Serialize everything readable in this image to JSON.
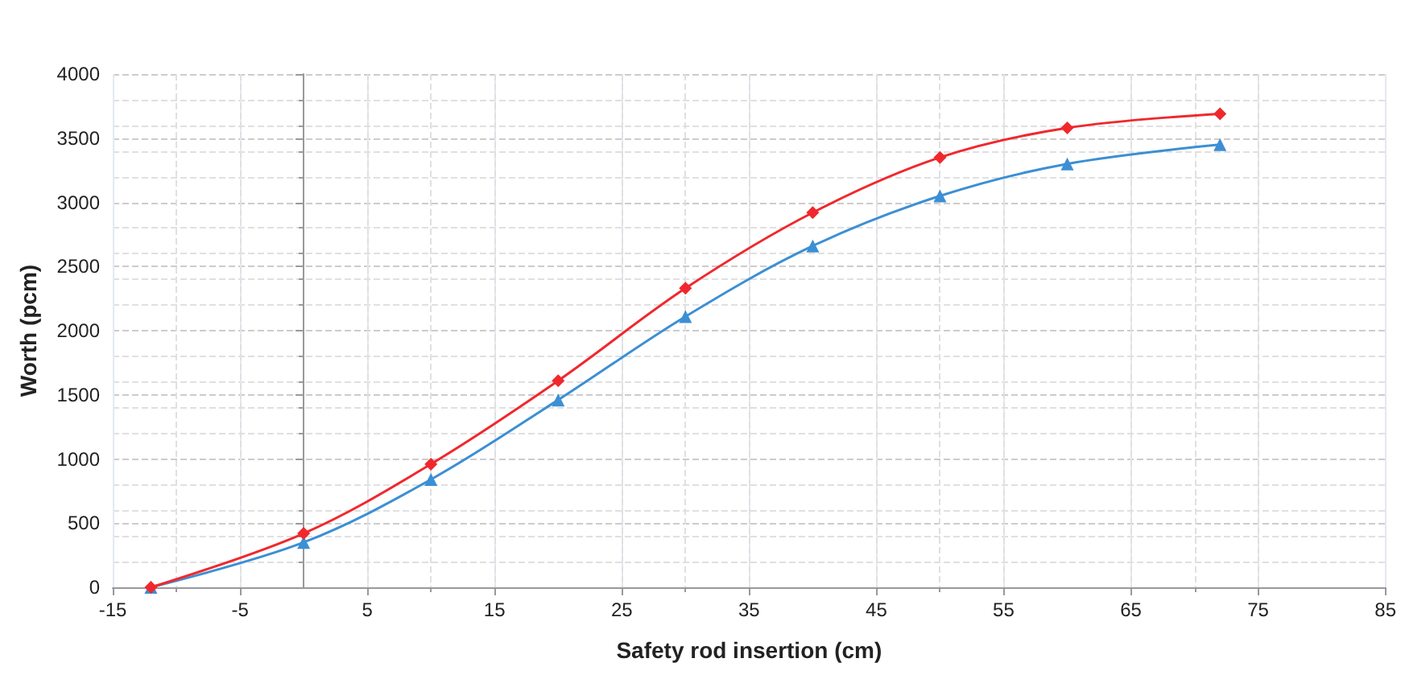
{
  "chart_data": {
    "type": "line",
    "xlabel": "Safety rod insertion (cm)",
    "ylabel": "Worth (pcm)",
    "x": [
      -12,
      0,
      10,
      20,
      30,
      40,
      50,
      60,
      72
    ],
    "series": [
      {
        "color": "#3c8fd4",
        "marker": "triangle",
        "values": [
          0,
          350,
          840,
          1460,
          2110,
          2660,
          3050,
          3300,
          3450
        ]
      },
      {
        "color": "#f0282d",
        "marker": "diamond",
        "values": [
          0,
          420,
          960,
          1610,
          2330,
          2920,
          3350,
          3580,
          3690
        ]
      }
    ],
    "xlim": [
      -15,
      85
    ],
    "xticks": [
      -15,
      -5,
      5,
      15,
      25,
      35,
      45,
      55,
      65,
      75,
      85
    ],
    "ylim": [
      0,
      4000
    ],
    "yticks": [
      0,
      500,
      1000,
      1500,
      2000,
      2500,
      3000,
      3500,
      4000
    ],
    "grid": true,
    "line_style": "solid"
  }
}
